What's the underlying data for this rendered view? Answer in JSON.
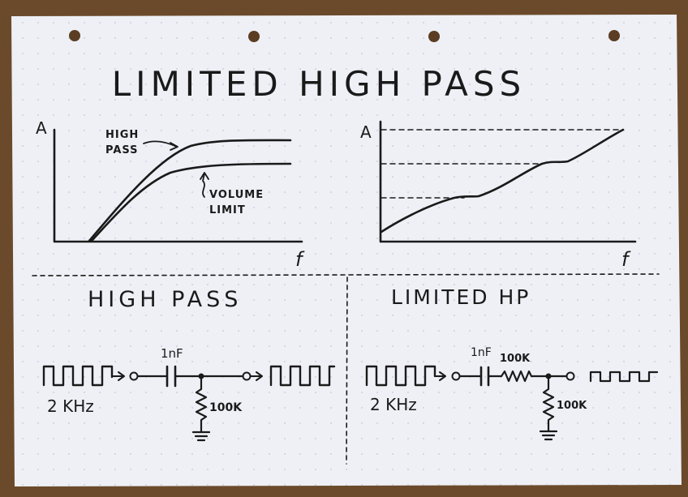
{
  "page": {
    "title": "LIMITED HIGH PASS"
  },
  "graph_left": {
    "y_axis_label": "A",
    "x_axis_label": "f",
    "curve_high_pass_label_line1": "HIGH",
    "curve_high_pass_label_line2": "PASS",
    "curve_limited_label_line1": "VOLUME",
    "curve_limited_label_line2": "LIMIT"
  },
  "graph_right": {
    "y_axis_label": "A",
    "x_axis_label": "f"
  },
  "circuit_left": {
    "heading": "HIGH PASS",
    "source_label": "2 KHz",
    "capacitor_label": "1nF",
    "resistor_label": "100K"
  },
  "circuit_right": {
    "heading": "LIMITED HP",
    "source_label": "2 KHz",
    "capacitor_label": "1nF",
    "series_resistor_label": "100K",
    "shunt_resistor_label": "100K"
  },
  "colors": {
    "paper": "#eef0f6",
    "ink": "#1a1a1a",
    "table": "#6b4a2b",
    "dot_grid": "#c3c8d6"
  }
}
